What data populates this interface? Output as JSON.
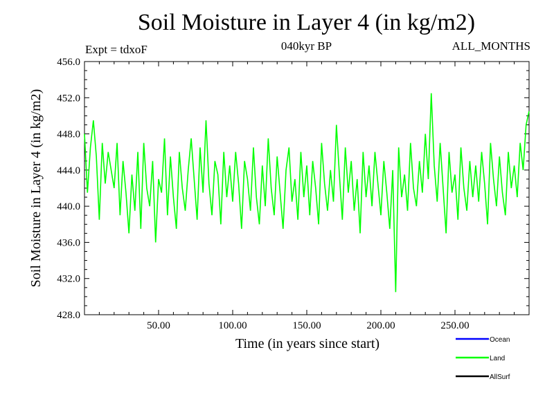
{
  "header": {
    "title": "Soil Moisture in Layer 4 (in kg/m2)",
    "subtitle": "040kyr BP",
    "expt": "Expt = tdxoF",
    "months": "ALL_MONTHS"
  },
  "colors": {
    "ocean": "#0000ff",
    "land": "#00ff00",
    "allsurf": "#000000",
    "axis": "#000000"
  },
  "chart_data": {
    "type": "line",
    "title": "Soil Moisture in Layer 4 (in kg/m2)",
    "xlabel": "Time (in years since start)",
    "ylabel": "Soil Moisture in Layer 4 (in kg/m2)",
    "xlim": [
      0,
      300
    ],
    "ylim": [
      428,
      456
    ],
    "x_ticks": [
      50,
      100,
      150,
      200,
      250
    ],
    "x_tick_labels": [
      "50.00",
      "100.00",
      "150.00",
      "200.00",
      "250.00"
    ],
    "y_ticks": [
      428,
      432,
      436,
      440,
      444,
      448,
      452,
      456
    ],
    "y_tick_labels": [
      "428.0",
      "432.0",
      "436.0",
      "440.0",
      "444.0",
      "448.0",
      "452.0",
      "456.0"
    ],
    "legend_position": "bottom-right",
    "series": [
      {
        "name": "Ocean",
        "values": []
      },
      {
        "name": "Land",
        "x": [
          0,
          2,
          4,
          6,
          8,
          10,
          12,
          14,
          16,
          18,
          20,
          22,
          24,
          26,
          28,
          30,
          32,
          34,
          36,
          38,
          40,
          42,
          44,
          46,
          48,
          50,
          52,
          54,
          56,
          58,
          60,
          62,
          64,
          66,
          68,
          70,
          72,
          74,
          76,
          78,
          80,
          82,
          84,
          86,
          88,
          90,
          92,
          94,
          96,
          98,
          100,
          102,
          104,
          106,
          108,
          110,
          112,
          114,
          116,
          118,
          120,
          122,
          124,
          126,
          128,
          130,
          132,
          134,
          136,
          138,
          140,
          142,
          144,
          146,
          148,
          150,
          152,
          154,
          156,
          158,
          160,
          162,
          164,
          166,
          168,
          170,
          172,
          174,
          176,
          178,
          180,
          182,
          184,
          186,
          188,
          190,
          192,
          194,
          196,
          198,
          200,
          202,
          204,
          206,
          208,
          210,
          212,
          214,
          216,
          218,
          220,
          222,
          224,
          226,
          228,
          230,
          232,
          234,
          236,
          238,
          240,
          242,
          244,
          246,
          248,
          250,
          252,
          254,
          256,
          258,
          260,
          262,
          264,
          266,
          268,
          270,
          272,
          274,
          276,
          278,
          280,
          282,
          284,
          286,
          288,
          290,
          292,
          294,
          296,
          298,
          300
        ],
        "values": [
          448.0,
          441.5,
          446.5,
          449.5,
          445.5,
          438.5,
          447.0,
          442.5,
          446.0,
          444.0,
          442.0,
          447.0,
          439.0,
          445.0,
          441.5,
          437.0,
          443.5,
          439.5,
          446.0,
          437.5,
          447.0,
          442.0,
          440.0,
          445.0,
          436.0,
          443.0,
          441.5,
          447.5,
          439.0,
          445.5,
          441.0,
          437.5,
          446.0,
          442.0,
          439.5,
          444.0,
          447.5,
          443.0,
          438.5,
          446.5,
          441.5,
          449.5,
          442.5,
          439.0,
          445.0,
          443.5,
          438.0,
          446.0,
          441.0,
          444.5,
          440.5,
          446.0,
          442.5,
          437.5,
          445.0,
          443.0,
          439.5,
          446.5,
          441.0,
          438.0,
          444.5,
          440.0,
          447.5,
          442.0,
          439.0,
          445.5,
          441.5,
          437.5,
          444.0,
          446.5,
          440.5,
          443.0,
          438.5,
          446.0,
          441.0,
          444.5,
          439.0,
          445.0,
          442.0,
          438.0,
          447.0,
          442.5,
          439.5,
          444.0,
          440.5,
          449.0,
          443.5,
          438.5,
          446.5,
          441.5,
          445.0,
          439.5,
          443.0,
          437.0,
          446.0,
          441.0,
          444.5,
          440.0,
          446.0,
          442.5,
          439.0,
          445.0,
          441.5,
          437.5,
          444.0,
          430.5,
          446.5,
          441.0,
          443.5,
          439.5,
          447.0,
          442.0,
          440.0,
          445.0,
          441.5,
          448.0,
          443.0,
          452.5,
          444.5,
          440.5,
          447.0,
          442.0,
          437.0,
          446.0,
          441.5,
          443.5,
          438.5,
          446.5,
          442.0,
          439.5,
          445.0,
          441.0,
          444.5,
          440.5,
          446.0,
          442.5,
          438.0,
          447.0,
          443.0,
          440.0,
          445.5,
          441.5,
          439.0,
          446.0,
          442.0,
          444.5,
          441.0,
          447.0,
          444.0,
          449.0,
          450.5
        ]
      },
      {
        "name": "AllSurf",
        "values": []
      }
    ]
  },
  "legend": {
    "items": [
      {
        "label": "Ocean",
        "color": "#0000ff"
      },
      {
        "label": "Land",
        "color": "#00ff00"
      },
      {
        "label": "AllSurf",
        "color": "#000000"
      }
    ]
  }
}
